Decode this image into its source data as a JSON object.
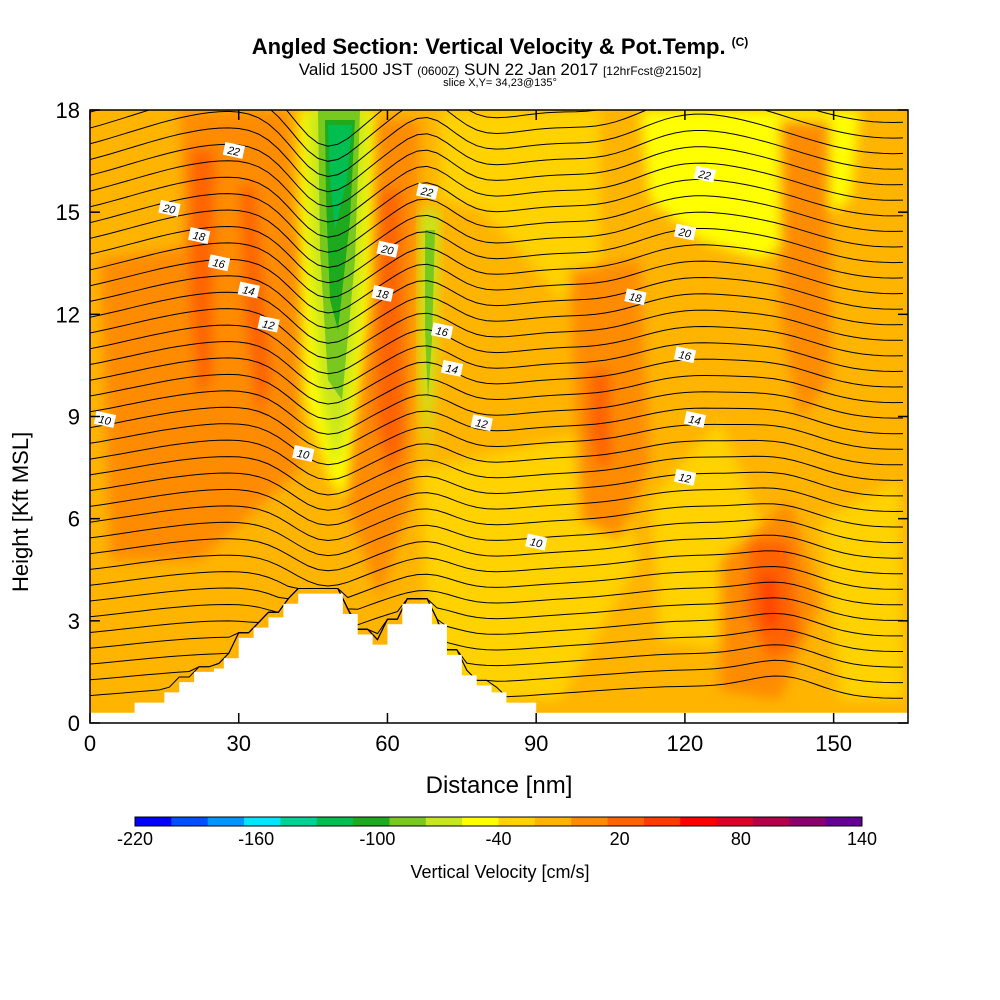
{
  "chart_data": {
    "type": "heatmap",
    "title": "Angled Section: Vertical Velocity & Pot.Temp.",
    "title_unit": "(C)",
    "subtitle_main": "Valid 1500 JST",
    "subtitle_utc": "(0600Z)",
    "subtitle_date": "SUN 22 Jan 2017",
    "subtitle_fcst": "[12hrFcst@2150z]",
    "slice": "slice X,Y= 34,23@135°",
    "xlabel": "Distance [nm]",
    "ylabel": "Height [Kft MSL]",
    "xlim": [
      0,
      165
    ],
    "ylim": [
      0,
      18
    ],
    "x_ticks": [
      "0",
      "30",
      "60",
      "90",
      "120",
      "150"
    ],
    "y_ticks": [
      "0",
      "3",
      "6",
      "9",
      "12",
      "15",
      "18"
    ],
    "colorbar": {
      "label": "Vertical Velocity [cm/s]",
      "tick_labels": [
        "-220",
        "-160",
        "-100",
        "-40",
        "20",
        "80",
        "140"
      ],
      "range": [
        -220,
        140
      ],
      "colors": [
        "#0000ff",
        "#0050ff",
        "#0096ff",
        "#00e6ff",
        "#00d296",
        "#00be50",
        "#1eaa1e",
        "#78c81e",
        "#c8e61e",
        "#ffff00",
        "#ffd200",
        "#ffb400",
        "#ff8c00",
        "#ff6400",
        "#ff3c00",
        "#ff0000",
        "#dc0028",
        "#b4004b",
        "#8c006e",
        "#640096"
      ]
    },
    "contour_labels": [
      {
        "x": 3,
        "y": 8.9,
        "text": "10"
      },
      {
        "x": 43,
        "y": 7.9,
        "text": "10"
      },
      {
        "x": 90,
        "y": 5.3,
        "text": "10"
      },
      {
        "x": 120,
        "y": 7.2,
        "text": "12"
      },
      {
        "x": 79,
        "y": 8.8,
        "text": "12"
      },
      {
        "x": 36,
        "y": 11.7,
        "text": "12"
      },
      {
        "x": 32,
        "y": 12.7,
        "text": "14"
      },
      {
        "x": 73,
        "y": 10.4,
        "text": "14"
      },
      {
        "x": 122,
        "y": 8.9,
        "text": "14"
      },
      {
        "x": 26,
        "y": 13.5,
        "text": "16"
      },
      {
        "x": 71,
        "y": 11.5,
        "text": "16"
      },
      {
        "x": 120,
        "y": 10.8,
        "text": "16"
      },
      {
        "x": 22,
        "y": 14.3,
        "text": "18"
      },
      {
        "x": 59,
        "y": 12.6,
        "text": "18"
      },
      {
        "x": 110,
        "y": 12.5,
        "text": "18"
      },
      {
        "x": 16,
        "y": 15.1,
        "text": "20"
      },
      {
        "x": 60,
        "y": 13.9,
        "text": "20"
      },
      {
        "x": 120,
        "y": 14.4,
        "text": "20"
      },
      {
        "x": 29,
        "y": 16.8,
        "text": "22"
      },
      {
        "x": 68,
        "y": 15.6,
        "text": "22"
      },
      {
        "x": 124,
        "y": 16.1,
        "text": "22"
      }
    ],
    "terrain": [
      [
        0,
        0.3
      ],
      [
        9,
        0.3
      ],
      [
        9,
        0.6
      ],
      [
        15,
        0.6
      ],
      [
        15,
        0.9
      ],
      [
        18,
        0.9
      ],
      [
        18,
        1.2
      ],
      [
        21,
        1.2
      ],
      [
        21,
        1.5
      ],
      [
        25,
        1.5
      ],
      [
        25,
        1.6
      ],
      [
        27,
        1.6
      ],
      [
        27,
        1.9
      ],
      [
        30,
        1.9
      ],
      [
        30,
        2.5
      ],
      [
        33,
        2.5
      ],
      [
        33,
        2.8
      ],
      [
        36,
        2.8
      ],
      [
        36,
        3.1
      ],
      [
        39,
        3.1
      ],
      [
        39,
        3.5
      ],
      [
        42,
        3.5
      ],
      [
        42,
        3.8
      ],
      [
        51,
        3.8
      ],
      [
        51,
        3.2
      ],
      [
        54,
        3.2
      ],
      [
        54,
        2.6
      ],
      [
        57,
        2.6
      ],
      [
        57,
        2.3
      ],
      [
        60,
        2.3
      ],
      [
        60,
        2.9
      ],
      [
        63,
        2.9
      ],
      [
        63,
        3.5
      ],
      [
        69,
        3.5
      ],
      [
        69,
        2.9
      ],
      [
        72,
        2.9
      ],
      [
        72,
        2.0
      ],
      [
        75,
        2.0
      ],
      [
        75,
        1.4
      ],
      [
        78,
        1.4
      ],
      [
        78,
        1.1
      ],
      [
        81,
        1.1
      ],
      [
        81,
        0.9
      ],
      [
        84,
        0.9
      ],
      [
        84,
        0.6
      ],
      [
        90,
        0.6
      ],
      [
        90,
        0.3
      ],
      [
        165,
        0.3
      ]
    ]
  }
}
